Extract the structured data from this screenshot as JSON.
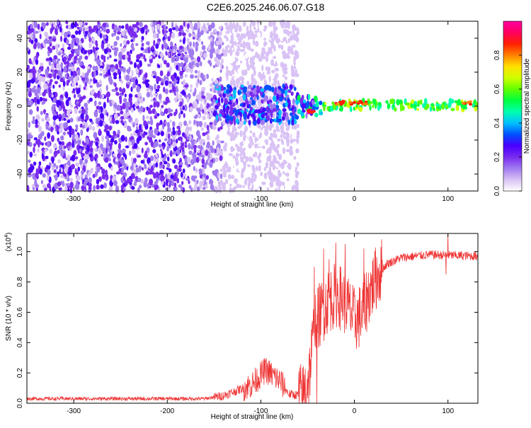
{
  "title": "C2E6.2025.246.06.07.G18",
  "chart_data": [
    {
      "type": "heatmap",
      "xlabel": "Height of straight line (km)",
      "ylabel": "Frequency (Hz)",
      "xlim": [
        -350,
        132
      ],
      "ylim": [
        -50,
        50
      ],
      "x_ticks": [
        -300,
        -200,
        -100,
        0,
        100
      ],
      "y_ticks": [
        -40,
        -20,
        0,
        20,
        40
      ],
      "colorbar": {
        "label": "Normalized spectral amplitude",
        "range": [
          0,
          1
        ],
        "ticks": [
          0.0,
          0.2,
          0.4,
          0.6,
          0.8
        ],
        "colormap": [
          "#ffffff",
          "#d9c2f5",
          "#a07af0",
          "#7a2bf0",
          "#4a00ff",
          "#0050ff",
          "#00c0ff",
          "#00ffb0",
          "#00ff40",
          "#60ff00",
          "#d0ff00",
          "#ffe000",
          "#ff8000",
          "#ff2000",
          "#ff0060",
          "#ff00a0"
        ]
      },
      "regions": [
        {
          "x_range": [
            -350,
            -180
          ],
          "freq_range": [
            -50,
            50
          ],
          "amplitude": 0.22,
          "description_level": "scattered purple"
        },
        {
          "x_range": [
            -180,
            -140
          ],
          "freq_range": [
            -50,
            50
          ],
          "amplitude": 0.15
        },
        {
          "x_range": [
            -140,
            -60
          ],
          "freq_range": [
            -50,
            50
          ],
          "amplitude": 0.08
        },
        {
          "x_range": [
            -150,
            -60
          ],
          "freq_range": [
            -10,
            12
          ],
          "amplitude": 0.35
        },
        {
          "x_range": [
            -60,
            -35
          ],
          "freq_range": [
            -6,
            6
          ],
          "amplitude": 0.45
        },
        {
          "x_range": [
            -35,
            132
          ],
          "freq_range": [
            -2,
            3
          ],
          "amplitude": 0.6
        }
      ],
      "peaks": [
        {
          "x": -45,
          "freq": -3,
          "amplitude": 1.0
        },
        {
          "x": -15,
          "freq": 2,
          "amplitude": 0.95
        },
        {
          "x": 0,
          "freq": 2,
          "amplitude": 0.95
        },
        {
          "x": 10,
          "freq": 2,
          "amplitude": 0.9
        },
        {
          "x": 120,
          "freq": 2,
          "amplitude": 0.9
        }
      ]
    },
    {
      "type": "line",
      "xlabel": "Height of straight line (km)",
      "ylabel": "SNR (10 * v/v)",
      "ylabel_multiplier": "(x10",
      "ylabel_exponent": "4",
      "xlim": [
        -350,
        132
      ],
      "ylim": [
        0,
        1.12
      ],
      "x_ticks": [
        -300,
        -200,
        -100,
        0,
        100
      ],
      "y_ticks": [
        0.0,
        0.2,
        0.4,
        0.6,
        0.8,
        1.0
      ],
      "y_tick_labels": [
        "0.0",
        "0.2",
        "0.4",
        "0.6",
        "0.8",
        "1.0"
      ],
      "color": "#ee3333",
      "envelope_points": [
        {
          "x": -350,
          "y": 0.03
        },
        {
          "x": -160,
          "y": 0.03
        },
        {
          "x": -140,
          "y": 0.05
        },
        {
          "x": -110,
          "y": 0.12
        },
        {
          "x": -95,
          "y": 0.22
        },
        {
          "x": -80,
          "y": 0.15
        },
        {
          "x": -70,
          "y": 0.06
        },
        {
          "x": -55,
          "y": 0.05
        },
        {
          "x": -48,
          "y": 0.2
        },
        {
          "x": -42,
          "y": 0.55
        },
        {
          "x": -35,
          "y": 0.6
        },
        {
          "x": -28,
          "y": 0.68
        },
        {
          "x": -18,
          "y": 0.72
        },
        {
          "x": -8,
          "y": 0.65
        },
        {
          "x": 0,
          "y": 0.55
        },
        {
          "x": 8,
          "y": 0.58
        },
        {
          "x": 15,
          "y": 0.72
        },
        {
          "x": 25,
          "y": 0.85
        },
        {
          "x": 35,
          "y": 0.92
        },
        {
          "x": 50,
          "y": 0.96
        },
        {
          "x": 80,
          "y": 0.98
        },
        {
          "x": 132,
          "y": 0.97
        }
      ],
      "spikes": [
        {
          "x": -43,
          "y": 0.9
        },
        {
          "x": -40,
          "y": 0.0
        },
        {
          "x": -33,
          "y": 1.02
        },
        {
          "x": -27,
          "y": 0.95
        },
        {
          "x": -20,
          "y": 1.06
        },
        {
          "x": -10,
          "y": 1.05
        },
        {
          "x": 10,
          "y": 1.02
        },
        {
          "x": 100,
          "y": 1.12
        },
        {
          "x": 98,
          "y": 0.85
        }
      ]
    }
  ]
}
